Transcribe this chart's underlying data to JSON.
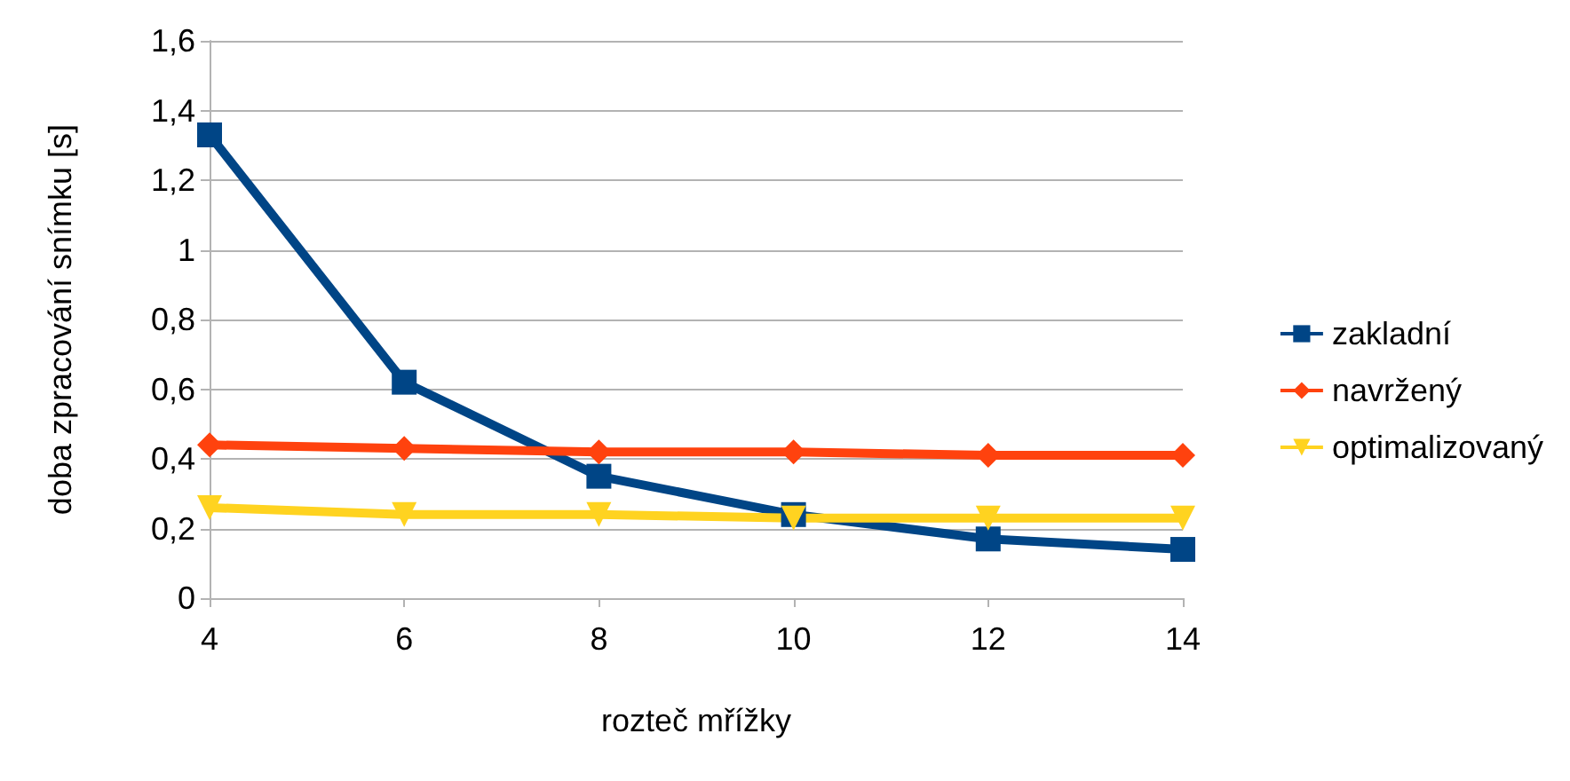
{
  "chart_data": {
    "type": "line",
    "xlabel": "rozteč mřížky",
    "ylabel": "doba zpracování snímku [s]",
    "x": [
      4,
      6,
      8,
      10,
      12,
      14
    ],
    "xlim": [
      4,
      14
    ],
    "xticks": [
      4,
      6,
      8,
      10,
      12,
      14
    ],
    "ylim": [
      0,
      1.6
    ],
    "yticks": [
      0,
      {
        "value": 0.2,
        "label": "0,2"
      },
      {
        "value": 0.4,
        "label": "0,4"
      },
      {
        "value": 0.6,
        "label": "0,6"
      },
      {
        "value": 0.8,
        "label": "0,8"
      },
      1,
      {
        "value": 1.2,
        "label": "1,2"
      },
      {
        "value": 1.4,
        "label": "1,4"
      },
      {
        "value": 1.6,
        "label": "1,6"
      }
    ],
    "grid": "y",
    "legend": "right",
    "series": [
      {
        "name": "zakladní",
        "color": "#004586",
        "marker": "square",
        "values": [
          1.33,
          0.62,
          0.35,
          0.24,
          0.17,
          0.14
        ]
      },
      {
        "name": "navržený",
        "color": "#ff420e",
        "marker": "diamond",
        "values": [
          0.44,
          0.43,
          0.42,
          0.42,
          0.41,
          0.41
        ]
      },
      {
        "name": "optimalizovaný",
        "color": "#ffd320",
        "marker": "triangle",
        "values": [
          0.26,
          0.24,
          0.24,
          0.23,
          0.23,
          0.23
        ]
      }
    ]
  }
}
